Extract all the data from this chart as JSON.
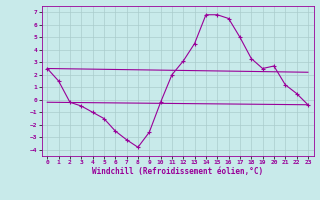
{
  "xlabel": "Windchill (Refroidissement éolien,°C)",
  "bg_color": "#c8eaea",
  "line_color": "#990099",
  "grid_color": "#aacccc",
  "xlim": [
    -0.5,
    23.5
  ],
  "ylim": [
    -4.5,
    7.5
  ],
  "xticks": [
    0,
    1,
    2,
    3,
    4,
    5,
    6,
    7,
    8,
    9,
    10,
    11,
    12,
    13,
    14,
    15,
    16,
    17,
    18,
    19,
    20,
    21,
    22,
    23
  ],
  "yticks": [
    -4,
    -3,
    -2,
    -1,
    0,
    1,
    2,
    3,
    4,
    5,
    6,
    7
  ],
  "line1_x": [
    0,
    1,
    2,
    3,
    4,
    5,
    6,
    7,
    8,
    9,
    10,
    11,
    12,
    13,
    14,
    15,
    16,
    17,
    18,
    19,
    20,
    21,
    22,
    23
  ],
  "line1_y": [
    2.5,
    1.5,
    -0.2,
    -0.5,
    -1.0,
    -1.5,
    -2.5,
    -3.2,
    -3.8,
    -2.6,
    -0.2,
    2.0,
    3.1,
    4.5,
    6.8,
    6.8,
    6.5,
    5.0,
    3.3,
    2.5,
    2.7,
    1.2,
    0.5,
    -0.4
  ],
  "line2_x": [
    0,
    23
  ],
  "line2_y": [
    -0.2,
    -0.4
  ],
  "line3_x": [
    0,
    23
  ],
  "line3_y": [
    2.5,
    2.2
  ]
}
